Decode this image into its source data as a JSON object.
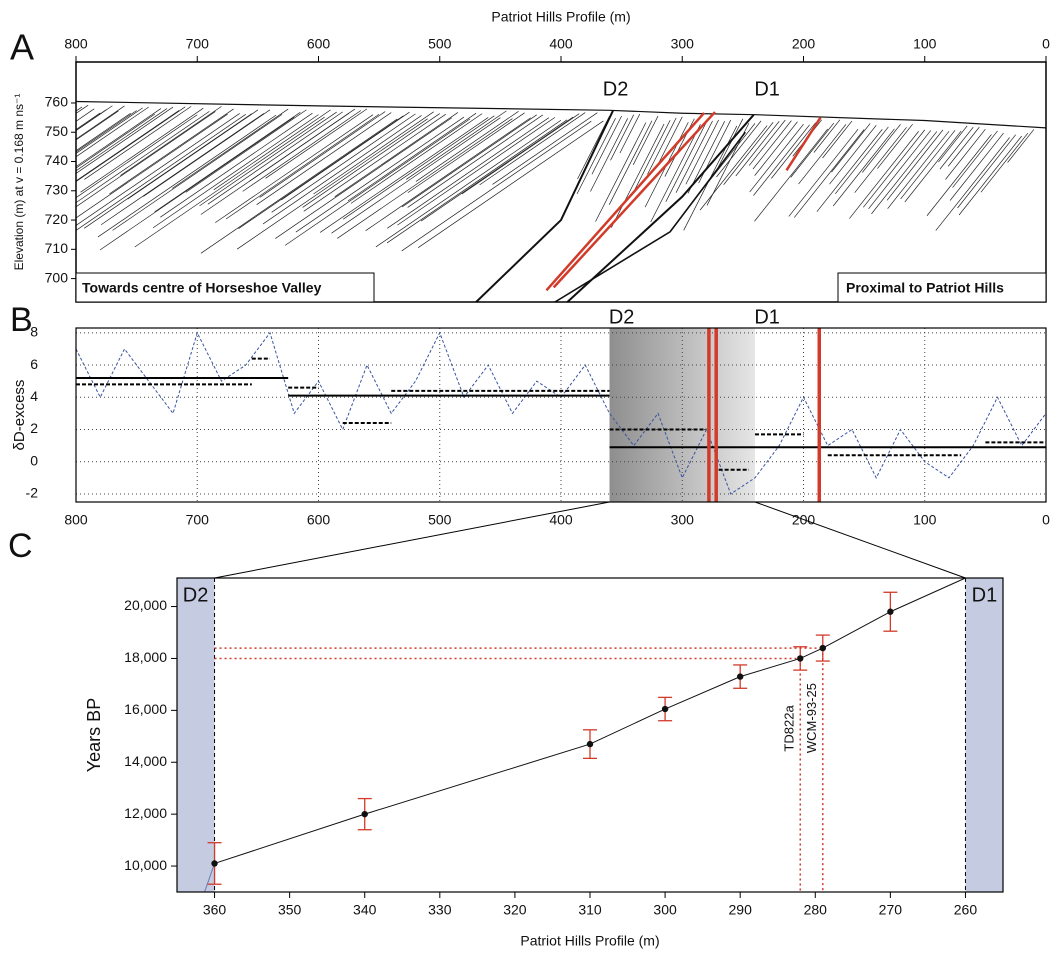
{
  "chart_data": [
    {
      "type": "profile",
      "panel_label": "A",
      "title": "Patriot Hills Profile (m)",
      "ylabel": "Elevation (m) at v = 0.168 m ns⁻¹",
      "xlim": [
        800,
        0
      ],
      "xticks": [
        800,
        700,
        600,
        500,
        400,
        300,
        200,
        100,
        0
      ],
      "ylim": [
        692,
        774
      ],
      "yticks": [
        700,
        710,
        720,
        730,
        740,
        750,
        760
      ],
      "surface": {
        "x": [
          800,
          600,
          360,
          300,
          240,
          100,
          0
        ],
        "y": [
          760.5,
          759,
          757.5,
          756.5,
          756,
          754,
          751.5
        ]
      },
      "red_lines": [
        {
          "x": [
            412,
            282
          ],
          "y": [
            696,
            756.6
          ]
        },
        {
          "x": [
            406,
            273
          ],
          "y": [
            697,
            756.9
          ]
        },
        {
          "x": [
            214,
            186
          ],
          "y": [
            737,
            755
          ]
        }
      ],
      "markers": [
        {
          "label": "D2",
          "x": 355
        },
        {
          "label": "D1",
          "x": 230
        }
      ],
      "corner_labels": [
        "Towards centre of Horseshoe Valley",
        "Proximal to Patriot Hills"
      ],
      "color": "#d23a2a"
    },
    {
      "type": "line",
      "panel_label": "B",
      "ylabel": "δD-excess",
      "xlim": [
        800,
        0
      ],
      "xticks": [
        800,
        700,
        600,
        500,
        400,
        300,
        200,
        100,
        0
      ],
      "ylim": [
        -2.5,
        8.3
      ],
      "yticks": [
        -2,
        0,
        2,
        4,
        6,
        8
      ],
      "grid": true,
      "color": "#3a55a0",
      "x": [
        800,
        780,
        760,
        740,
        720,
        700,
        680,
        660,
        640,
        620,
        600,
        580,
        560,
        540,
        520,
        500,
        480,
        460,
        440,
        420,
        400,
        380,
        360,
        340,
        320,
        300,
        280,
        260,
        240,
        220,
        200,
        180,
        160,
        140,
        120,
        100,
        80,
        60,
        40,
        20,
        0
      ],
      "values": [
        7,
        4,
        7,
        5,
        3,
        8,
        5,
        6,
        8,
        3,
        5,
        2,
        6,
        3,
        5,
        8,
        4,
        6,
        3,
        5,
        4,
        6,
        3,
        1,
        3,
        -1,
        2,
        -2,
        -1,
        1,
        4,
        1,
        2,
        -1,
        2,
        0,
        -1,
        1,
        4,
        1,
        3
      ],
      "mean_solid": [
        {
          "x": [
            800,
            625
          ],
          "y": 5.2
        },
        {
          "x": [
            625,
            360
          ],
          "y": 4.1
        },
        {
          "x": [
            360,
            0
          ],
          "y": 0.9
        }
      ],
      "mean_dashed": [
        {
          "x": [
            800,
            655
          ],
          "y": 4.8
        },
        {
          "x": [
            655,
            640
          ],
          "y": 6.4
        },
        {
          "x": [
            625,
            600
          ],
          "y": 4.6
        },
        {
          "x": [
            580,
            540
          ],
          "y": 2.4
        },
        {
          "x": [
            540,
            360
          ],
          "y": 4.4
        },
        {
          "x": [
            360,
            280
          ],
          "y": 2
        },
        {
          "x": [
            270,
            245
          ],
          "y": -0.5
        },
        {
          "x": [
            240,
            200
          ],
          "y": 1.7
        },
        {
          "x": [
            180,
            70
          ],
          "y": 0.4
        },
        {
          "x": [
            50,
            0
          ],
          "y": 1.2
        }
      ],
      "red_lines": [
        278,
        272,
        187
      ],
      "red_color": "#d23a2a",
      "shaded": [
        360,
        240
      ],
      "markers": [
        {
          "label": "D2",
          "x": 350
        },
        {
          "label": "D1",
          "x": 230
        }
      ]
    },
    {
      "type": "scatter",
      "panel_label": "C",
      "xlabel": "Patriot Hills Profile (m)",
      "ylabel": "Years BP",
      "xlim": [
        365,
        255
      ],
      "xticks": [
        360,
        350,
        340,
        330,
        320,
        310,
        300,
        290,
        280,
        270,
        260
      ],
      "ylim": [
        9000,
        21100
      ],
      "yticks": [
        {
          "value": 10000,
          "label": "10,000"
        },
        {
          "value": 12000,
          "label": "12,000"
        },
        {
          "value": 14000,
          "label": "14,000"
        },
        {
          "value": 16000,
          "label": "16,000"
        },
        {
          "value": 18000,
          "label": "18,000"
        },
        {
          "value": 20000,
          "label": "20,000"
        }
      ],
      "x": [
        360,
        340,
        310,
        300,
        290,
        282,
        279,
        270
      ],
      "values": [
        10100,
        12000,
        14700,
        16050,
        17300,
        18000,
        18400,
        19800
      ],
      "errors": [
        800,
        600,
        550,
        450,
        450,
        450,
        500,
        750
      ],
      "point_labels": [
        null,
        null,
        null,
        null,
        null,
        "TD822a",
        "WCM-93-25",
        null
      ],
      "color": "#111111",
      "error_color": "#d23a2a",
      "shade_color": "#c5cbe0",
      "shaded": [
        [
          365,
          360
        ],
        [
          260,
          255
        ]
      ],
      "markers": [
        {
          "label": "D2",
          "x": 360
        },
        {
          "label": "D1",
          "x": 260
        }
      ]
    }
  ]
}
